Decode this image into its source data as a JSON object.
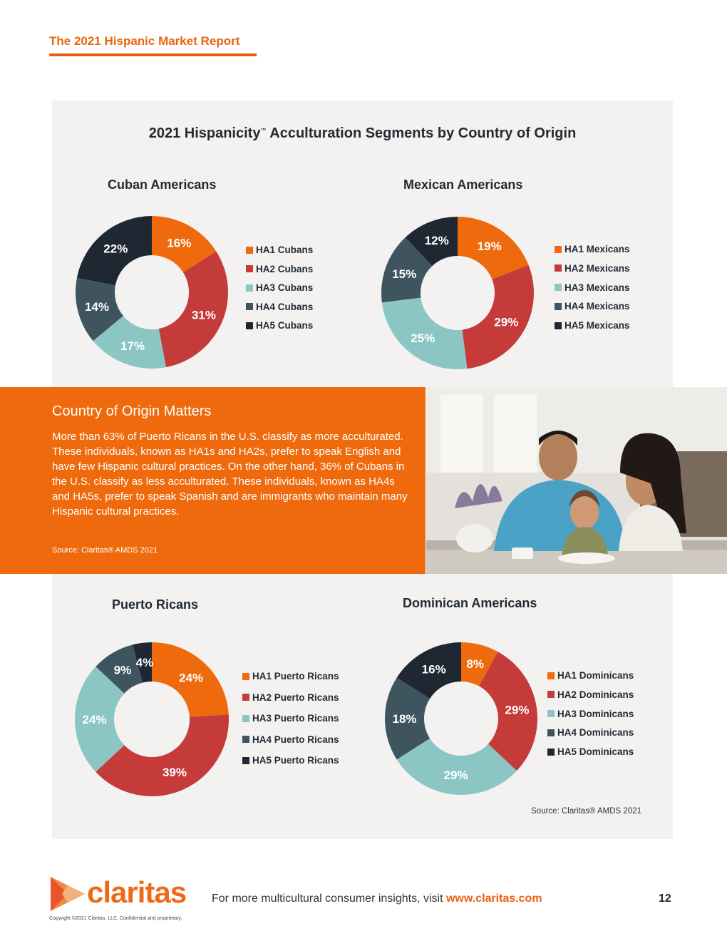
{
  "header": {
    "report_title": "The 2021 Hispanic Market Report"
  },
  "colors": {
    "HA1": "#ef6a0c",
    "HA2": "#c43b39",
    "HA3": "#8bc6c5",
    "HA4": "#3e5560",
    "HA5": "#1f2733",
    "accent": "#ea5f0e",
    "panel": "#f3f2f1"
  },
  "main_title": {
    "text": "2021 Hispanicity",
    "tm": "™",
    "rest": " Acculturation Segments by Country of Origin"
  },
  "chart_data": [
    {
      "type": "pie",
      "title": "Cuban Americans",
      "categories": [
        "HA1 Cubans",
        "HA2 Cubans",
        "HA3 Cubans",
        "HA4 Cubans",
        "HA5 Cubans"
      ],
      "values": [
        16,
        31,
        17,
        14,
        22
      ],
      "labels": [
        "16%",
        "31%",
        "17%",
        "14%",
        "22%"
      ]
    },
    {
      "type": "pie",
      "title": "Mexican Americans",
      "categories": [
        "HA1 Mexicans",
        "HA2 Mexicans",
        "HA3 Mexicans",
        "HA4 Mexicans",
        "HA5 Mexicans"
      ],
      "values": [
        19,
        29,
        25,
        15,
        12
      ],
      "labels": [
        "19%",
        "29%",
        "25%",
        "15%",
        "12%"
      ]
    },
    {
      "type": "pie",
      "title": "Puerto Ricans",
      "categories": [
        "HA1 Puerto Ricans",
        "HA2 Puerto Ricans",
        "HA3 Puerto Ricans",
        "HA4 Puerto Ricans",
        "HA5 Puerto Ricans"
      ],
      "values": [
        24,
        39,
        24,
        9,
        4
      ],
      "labels": [
        "24%",
        "39%",
        "24%",
        "9%",
        "4%"
      ]
    },
    {
      "type": "pie",
      "title": "Dominican Americans",
      "categories": [
        "HA1 Dominicans",
        "HA2 Dominicans",
        "HA3 Dominicans",
        "HA4 Dominicans",
        "HA5 Dominicans"
      ],
      "values": [
        8,
        29,
        29,
        18,
        16
      ],
      "labels": [
        "8%",
        "29%",
        "29%",
        "18%",
        "16%"
      ]
    }
  ],
  "callout": {
    "heading": "Country of Origin Matters",
    "body": "More than 63% of Puerto Ricans in the U.S. classify as more acculturated. These individuals, known as HA1s and HA2s, prefer to speak English and have few Hispanic cultural practices. On the other hand, 36% of Cubans in the U.S. classify as less acculturated. These individuals, known as HA4s and HA5s, prefer to speak Spanish and are immigrants who maintain many Hispanic cultural practices.",
    "source": "Source: Claritas® AMDS 2021"
  },
  "bottom_source": "Source: Claritas® AMDS 2021",
  "footer": {
    "logo_text": "claritas",
    "cta_text": "For more multicultural consumer insights, visit ",
    "cta_link": "www.claritas.com",
    "page_number": "12",
    "copyright": "Copyright ©2021 Claritas, LLC. Confidential and proprietary."
  }
}
